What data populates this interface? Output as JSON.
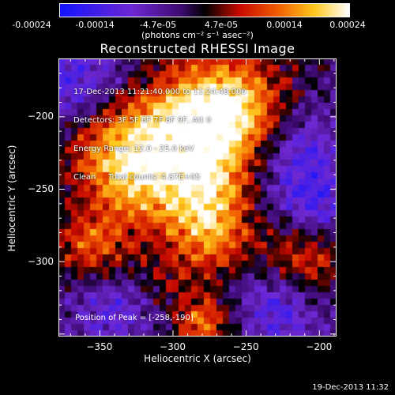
{
  "colorbar": {
    "tick_labels": [
      "-0.00024",
      "-0.00014",
      "-4.7e-05",
      "4.7e-05",
      "0.00014",
      "0.00024"
    ],
    "units": "(photons cm⁻² s⁻¹ asec⁻²)",
    "range": [
      -0.00024,
      0.00024
    ]
  },
  "chart_data": {
    "type": "heatmap",
    "title": "Reconstructed RHESSI Image",
    "xlabel": "Heliocentric X (arcsec)",
    "ylabel": "Heliocentric Y (arcsec)",
    "xlim": [
      -378,
      -188
    ],
    "ylim": [
      -352,
      -160
    ],
    "x_ticks": [
      -350,
      -300,
      -250,
      -200
    ],
    "y_ticks": [
      -200,
      -250,
      -300
    ],
    "x_tick_labels": [
      "−350",
      "−300",
      "−250",
      "−200"
    ],
    "y_tick_labels": [
      "−200",
      "−250",
      "−300"
    ],
    "peak_position": [
      -258,
      -190
    ],
    "info_lines": [
      "17-Dec-2013 11:21:40.000 to 11:24:48.000",
      "Detectors: 3F 5F 6F 7F 8F 9F, Att 0",
      "Energy Range: 12.0 - 25.0 keV",
      "Clean     Total counts: 4.87E+05"
    ],
    "peak_label": "Position of Peak = [-258,-190]"
  },
  "footer": {
    "timestamp": "19-Dec-2013 11:32"
  }
}
